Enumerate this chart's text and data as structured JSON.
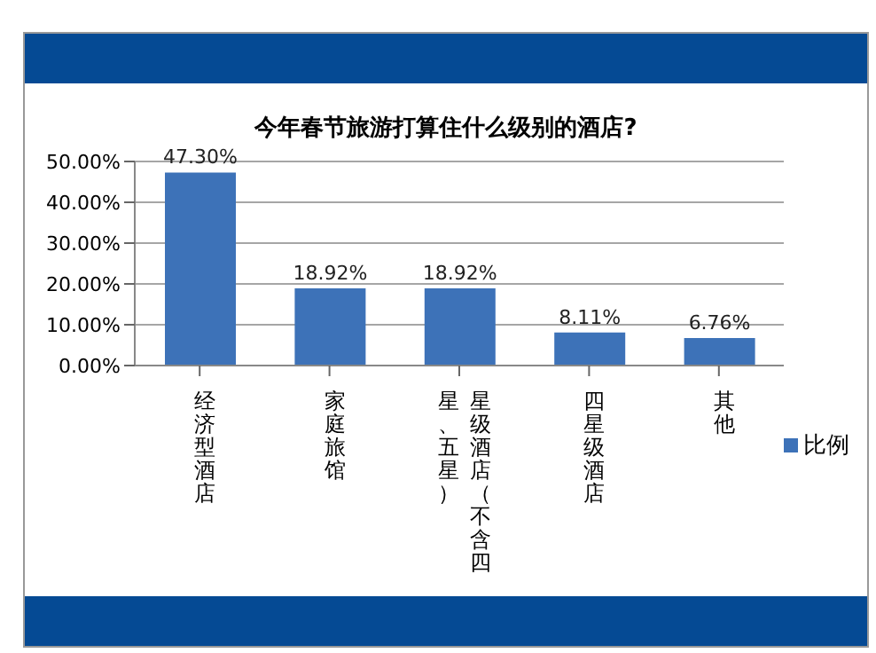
{
  "chart_data": {
    "type": "bar",
    "title": "今年春节旅游打算住什么级别的酒店?",
    "categories": [
      "经济型酒店",
      "家庭旅馆",
      "星级酒店（不含四星、五星）",
      "四星级酒店",
      "其他"
    ],
    "series": [
      {
        "name": "比例",
        "color": "#3d72b8",
        "values": [
          47.3,
          18.92,
          18.92,
          8.11,
          6.76
        ],
        "value_labels": [
          "47.30%",
          "18.92%",
          "18.92%",
          "8.11%",
          "6.76%"
        ]
      }
    ],
    "ylim": [
      0,
      50
    ],
    "yticks": [
      {
        "value": 0,
        "label": "0.00%"
      },
      {
        "value": 10,
        "label": "10.00%"
      },
      {
        "value": 20,
        "label": "20.00%"
      },
      {
        "value": 30,
        "label": "30.00%"
      },
      {
        "value": 40,
        "label": "40.00%"
      },
      {
        "value": 50,
        "label": "50.00%"
      }
    ],
    "grid": "y",
    "legend": "right"
  }
}
